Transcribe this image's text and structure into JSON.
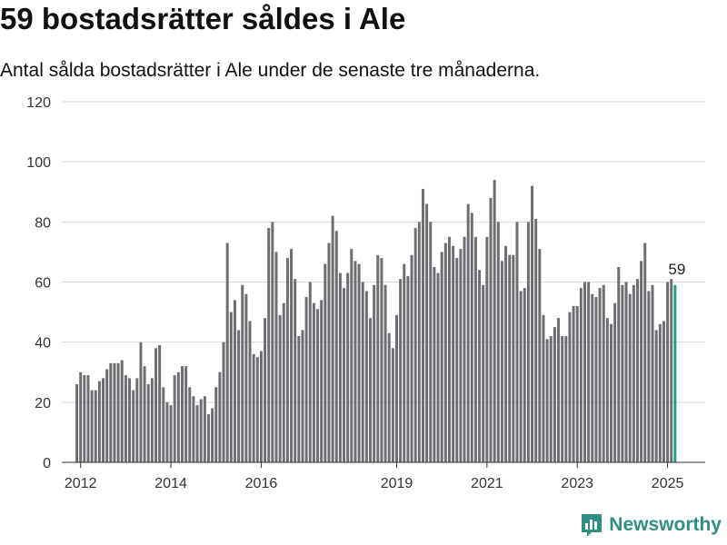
{
  "header": {
    "title": "59 bostadsrätter såldes i Ale",
    "subtitle": "Antal sålda bostadsrätter i Ale under de senaste tre månaderna."
  },
  "brand": {
    "name": "Newsworthy",
    "logo_icon": "newsworthy-chart-icon",
    "color": "#2f8f83"
  },
  "colors": {
    "bar": "#6d6d72",
    "highlight": "#1f9e89",
    "grid": "#d9d9d9",
    "axis": "#333333"
  },
  "chart_data": {
    "type": "bar",
    "title": "59 bostadsrätter såldes i Ale",
    "subtitle": "Antal sålda bostadsrätter i Ale under de senaste tre månaderna.",
    "xlabel": "",
    "ylabel": "",
    "ylim": [
      0,
      120
    ],
    "yticks": [
      0,
      20,
      40,
      60,
      80,
      100,
      120
    ],
    "xlim": [
      "2011-08",
      "2025-11"
    ],
    "xticks": [
      "2012",
      "2014",
      "2016",
      "2019",
      "2021",
      "2023",
      "2025"
    ],
    "xtick_dates": [
      "2012-01",
      "2014-01",
      "2016-01",
      "2019-01",
      "2021-01",
      "2023-01",
      "2025-01"
    ],
    "grid": "horizontal",
    "start_month": "2011-12",
    "frequency": "monthly",
    "values": [
      26,
      30,
      29,
      29,
      24,
      24,
      27,
      28,
      31,
      33,
      33,
      33,
      34,
      29,
      28,
      24,
      28,
      40,
      32,
      26,
      28,
      38,
      39,
      25,
      20,
      19,
      29,
      30,
      32,
      32,
      25,
      22,
      19,
      21,
      22,
      16,
      18,
      25,
      30,
      40,
      73,
      50,
      54,
      44,
      59,
      56,
      47,
      36,
      35,
      37,
      48,
      78,
      80,
      70,
      49,
      53,
      68,
      71,
      61,
      42,
      44,
      55,
      60,
      53,
      51,
      54,
      66,
      73,
      82,
      77,
      63,
      58,
      63,
      71,
      67,
      66,
      60,
      57,
      48,
      59,
      69,
      68,
      59,
      43,
      38,
      49,
      61,
      66,
      62,
      69,
      78,
      80,
      91,
      86,
      80,
      65,
      63,
      70,
      73,
      75,
      72,
      68,
      71,
      75,
      86,
      83,
      75,
      64,
      59,
      75,
      88,
      94,
      80,
      67,
      72,
      69,
      69,
      80,
      57,
      58,
      80,
      92,
      81,
      71,
      49,
      41,
      42,
      45,
      48,
      42,
      42,
      50,
      52,
      52,
      58,
      60,
      60,
      56,
      55,
      58,
      59,
      48,
      46,
      53,
      65,
      59,
      60,
      56,
      59,
      61,
      67,
      73,
      57,
      59,
      44,
      46,
      47,
      60,
      61,
      59
    ],
    "highlight_last": true,
    "annotations": [
      {
        "label": "59",
        "target": "last"
      }
    ]
  }
}
